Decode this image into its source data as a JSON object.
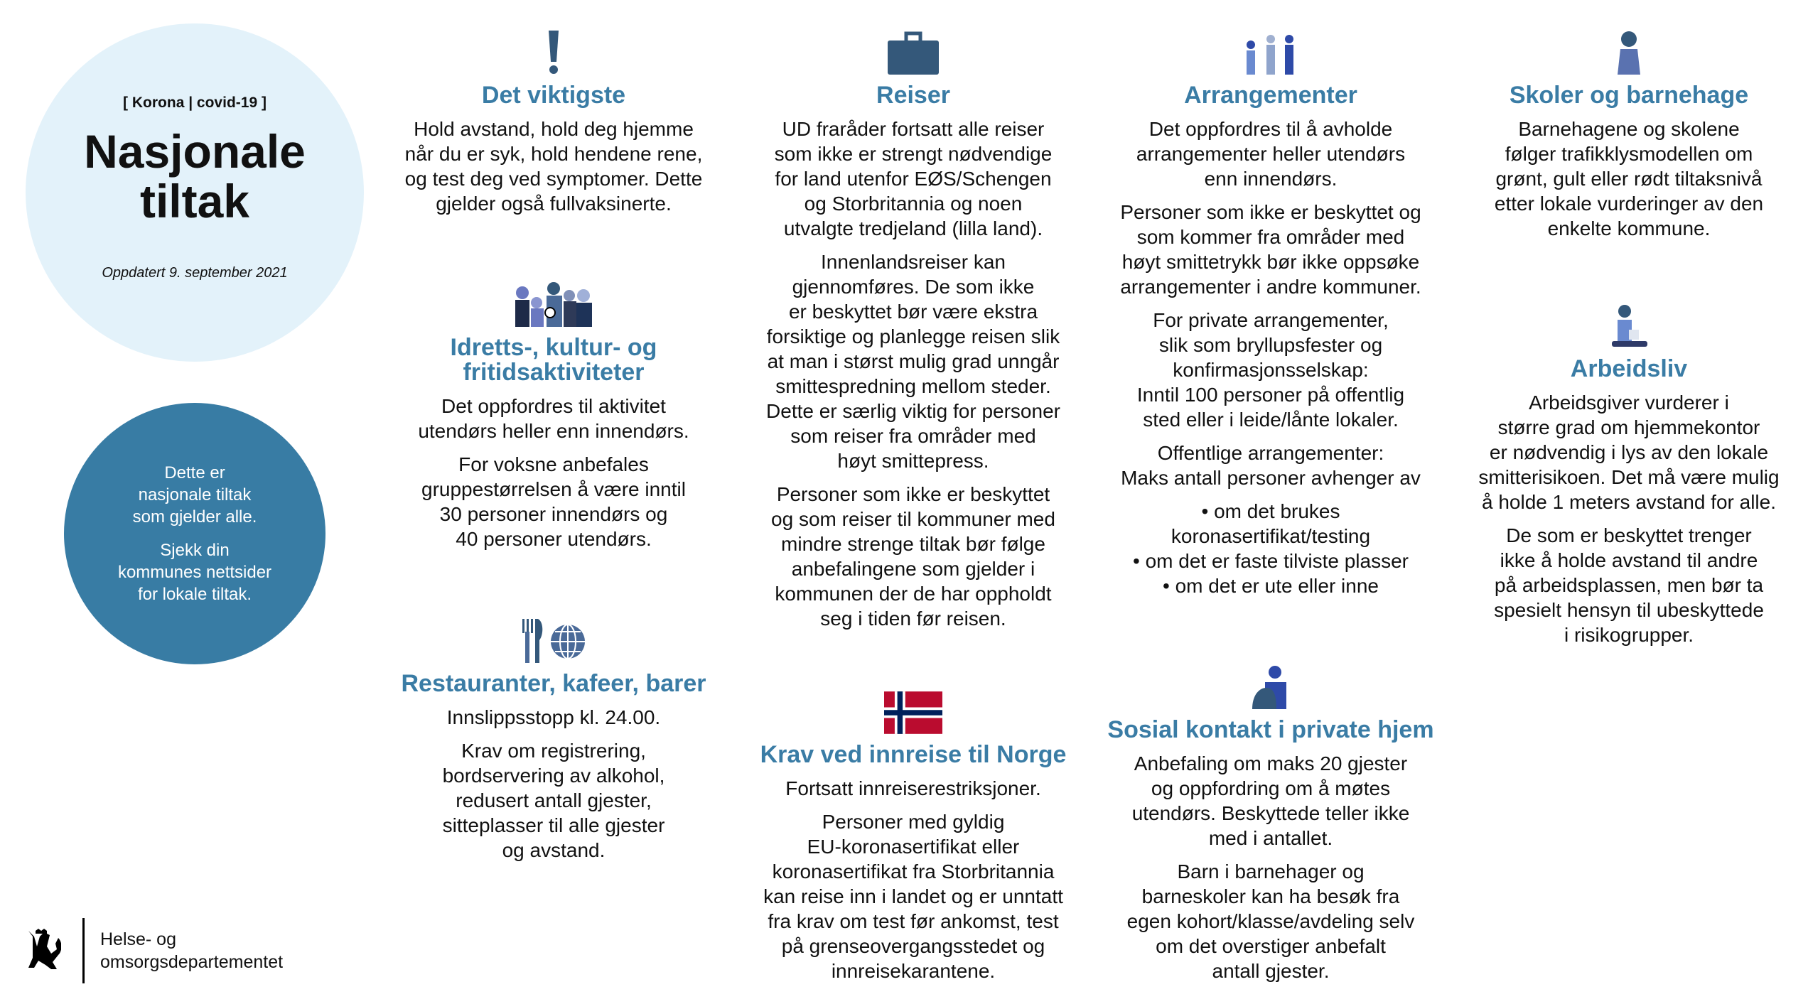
{
  "intro": {
    "tag": "[ Korona | covid-19 ]",
    "title": "Nasjonale\ntiltak",
    "updated": "Oppdatert 9. september 2021"
  },
  "notice": {
    "line1": "Dette er\nnasjonale tiltak\nsom gjelder alle.",
    "line2": "Sjekk din\nkommunes nettsider\nfor lokale tiltak."
  },
  "sections": {
    "viktigste": {
      "icon": "exclamation-icon",
      "heading": "Det viktigste",
      "paragraphs": [
        "Hold avstand, hold deg hjemme\nnår du er syk, hold hendene rene,\nog test deg ved symptomer. Dette\ngjelder også fullvaksinerte."
      ]
    },
    "idrett": {
      "icon": "group-people-icon",
      "heading": "Idretts-, kultur- og\nfritidsaktiviteter",
      "paragraphs": [
        "Det oppfordres til aktivitet\nutendørs heller enn innendørs.",
        "For voksne anbefales\ngruppestørrelsen å være inntil\n30 personer innendørs og\n40 personer utendørs."
      ]
    },
    "restaurant": {
      "icon": "cutlery-globe-icon",
      "heading": "Restauranter, kafeer, barer",
      "paragraphs": [
        "Innslippsstopp kl. 24.00.",
        "Krav om registrering,\nbordservering av alkohol,\nredusert antall gjester,\nsitteplasser til alle gjester\nog avstand."
      ]
    },
    "reiser": {
      "icon": "suitcase-icon",
      "heading": "Reiser",
      "paragraphs": [
        "UD fraråder fortsatt alle reiser\nsom ikke er strengt nødvendige\nfor land utenfor EØS/Schengen\nog Storbritannia og noen\nutvalgte tredjeland (lilla land).",
        "Innenlandsreiser kan\ngjennomføres. De som ikke\ner beskyttet bør være ekstra\nforsiktige og planlegge reisen slik\nat man i størst mulig grad unngår\nsmittespredning mellom steder.\nDette er særlig viktig for personer\nsom reiser fra områder med\nhøyt smittepress.",
        "Personer som ikke er beskyttet\nog som reiser til kommuner med\nmindre strenge tiltak bør følge\nanbefalingene som gjelder i\nkommunen der de har oppholdt\nseg i tiden før reisen."
      ]
    },
    "krav": {
      "icon": "norway-flag-icon",
      "heading": "Krav ved innreise til Norge",
      "paragraphs": [
        "Fortsatt innreiserestriksjoner.",
        "Personer med gyldig\nEU-koronasertifikat eller\nkoronasertifikat fra Storbritannia\nkan reise inn i landet og er unntatt\nfra krav om test før ankomst, test\npå grenseovergangsstedet og\ninnreisekarantene."
      ]
    },
    "arrangementer": {
      "icon": "event-people-icon",
      "heading": "Arrangementer",
      "paragraphs": [
        "Det oppfordres til å avholde\narrangementer heller utendørs\nenn innendørs.",
        "Personer som ikke er beskyttet og\nsom kommer fra områder med\nhøyt smittetrykk bør ikke oppsøke\narrangementer i andre kommuner.",
        "For private arrangementer,\nslik som bryllupsfester og\nkonfirmasjonsselskap:\nInntil 100 personer på offentlig\nsted eller i leide/lånte lokaler.",
        "Offentlige arrangementer:\nMaks antall personer avhenger av",
        "• om det brukes\nkoronasertifikat/testing\n• om det er faste tilviste plasser\n• om det er ute eller inne"
      ]
    },
    "sosial": {
      "icon": "person-home-icon",
      "heading": "Sosial kontakt i private hjem",
      "paragraphs": [
        "Anbefaling om maks 20 gjester\nog oppfordring om å møtes\nutendørs. Beskyttede teller ikke\nmed i antallet.",
        "Barn i barnehager og\nbarneskoler kan ha besøk fra\negen kohort/klasse/avdeling selv\nom det overstiger anbefalt\nantall gjester."
      ]
    },
    "skoler": {
      "icon": "child-icon",
      "heading": "Skoler og barnehage",
      "paragraphs": [
        "Barnehagene og skolene\nfølger trafikklysmodellen om\ngrønt, gult eller rødt tiltaksnivå\netter lokale vurderinger av den\nenkelte kommune."
      ]
    },
    "arbeidsliv": {
      "icon": "person-laptop-icon",
      "heading": "Arbeidsliv",
      "paragraphs": [
        "Arbeidsgiver vurderer i\nstørre grad om hjemmekontor\ner nødvendig i lys av den lokale\nsmitterisikoen. Det må være mulig\nå holde 1 meters avstand for alle.",
        "De som er beskyttet trenger\nikke å holde avstand til andre\npå arbeidsplassen, men bør ta\nspesielt hensyn til ubeskyttede\ni risikogrupper."
      ]
    }
  },
  "footer": {
    "department": "Helse- og\nomsorgsdepartementet",
    "logo": "norwegian-coat-of-arms"
  },
  "colors": {
    "accent": "#3a7ca5",
    "notice_bg": "#387ca4",
    "intro_bg": "#e3f2fa",
    "icon_dark": "#34587a"
  }
}
